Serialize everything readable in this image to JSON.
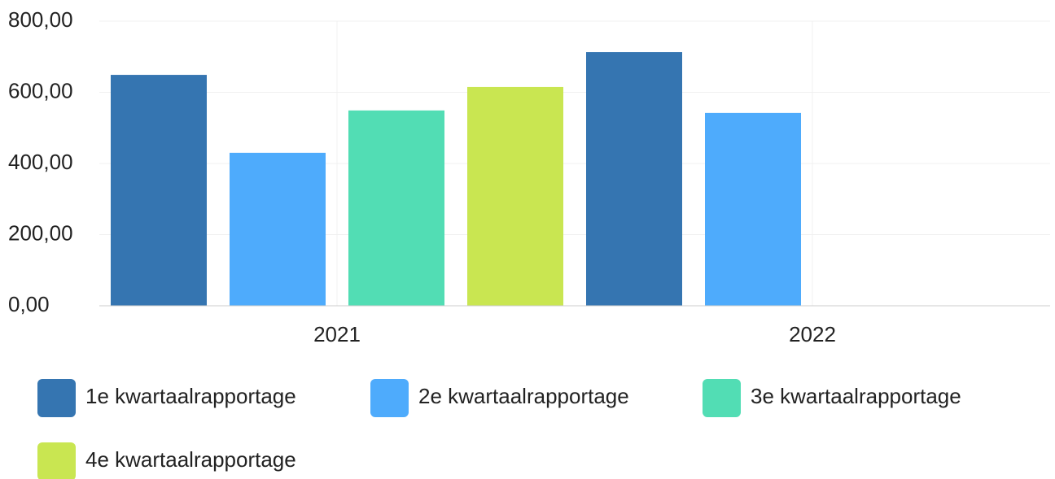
{
  "chart_data": {
    "type": "bar",
    "categories": [
      "2021",
      "2022"
    ],
    "series": [
      {
        "name": "1e kwartaalrapportage",
        "color": "#3575b1",
        "values": [
          649,
          713
        ]
      },
      {
        "name": "2e kwartaalrapportage",
        "color": "#4eabfc",
        "values": [
          430,
          542
        ]
      },
      {
        "name": "3e kwartaalrapportage",
        "color": "#52ddb4",
        "values": [
          549,
          0
        ]
      },
      {
        "name": "4e kwartaalrapportage",
        "color": "#c9e651",
        "values": [
          615,
          0
        ]
      }
    ],
    "ylim": [
      0,
      800
    ],
    "yticks": [
      {
        "value": 0,
        "label": "0,00"
      },
      {
        "value": 200,
        "label": "200,00"
      },
      {
        "value": 400,
        "label": "400,00"
      },
      {
        "value": 600,
        "label": "600,00"
      },
      {
        "value": 800,
        "label": "800,00"
      }
    ],
    "grid": true
  }
}
